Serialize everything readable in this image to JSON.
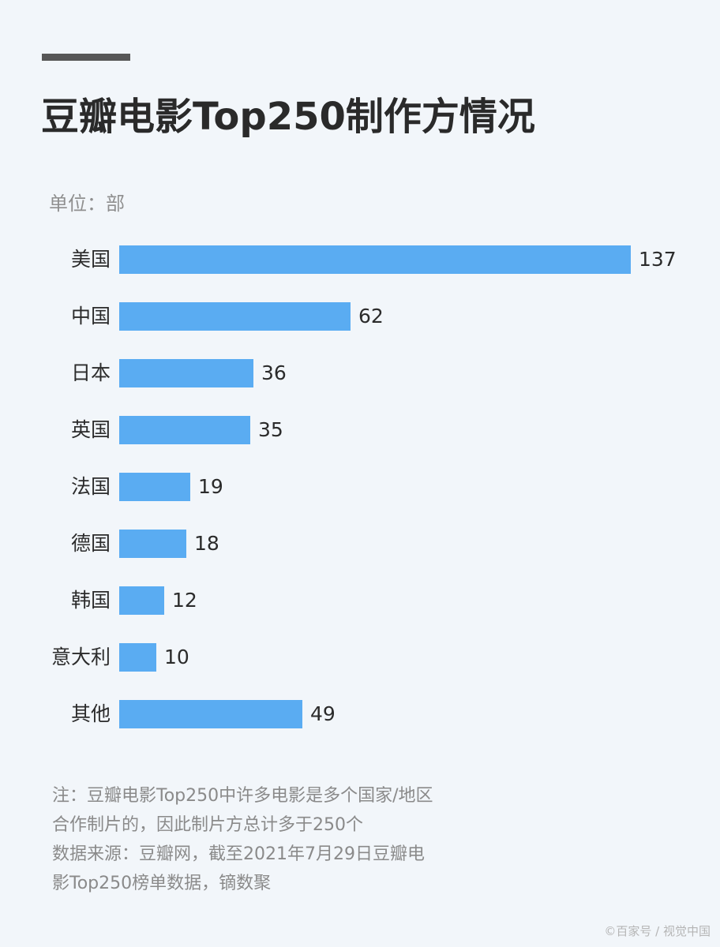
{
  "header": {
    "title": "豆瓣电影Top250制作方情况",
    "unit": "单位：部"
  },
  "chart_data": {
    "type": "bar",
    "orientation": "horizontal",
    "title": "豆瓣电影Top250制作方情况",
    "xlabel": "",
    "ylabel": "",
    "unit": "部",
    "categories": [
      "美国",
      "中国",
      "日本",
      "英国",
      "法国",
      "德国",
      "韩国",
      "意大利",
      "其他"
    ],
    "values": [
      137,
      62,
      36,
      35,
      19,
      18,
      12,
      10,
      49
    ],
    "bar_color": "#5aacf2",
    "grid": false,
    "legend": false,
    "data_labels": true
  },
  "rows": [
    {
      "label": "美国",
      "value": "137"
    },
    {
      "label": "中国",
      "value": "62"
    },
    {
      "label": "日本",
      "value": "36"
    },
    {
      "label": "英国",
      "value": "35"
    },
    {
      "label": "法国",
      "value": "19"
    },
    {
      "label": "德国",
      "value": "18"
    },
    {
      "label": "韩国",
      "value": "12"
    },
    {
      "label": "意大利",
      "value": "10"
    },
    {
      "label": "其他",
      "value": "49"
    }
  ],
  "notes": [
    "注：豆瓣电影Top250中许多电影是多个国家/地区",
    "合作制片的，因此制片方总计多于250个",
    "数据来源：豆瓣网，截至2021年7月29日豆瓣电",
    "影Top250榜单数据，镝数聚"
  ],
  "watermark": "©百家号 / 视觉中国"
}
